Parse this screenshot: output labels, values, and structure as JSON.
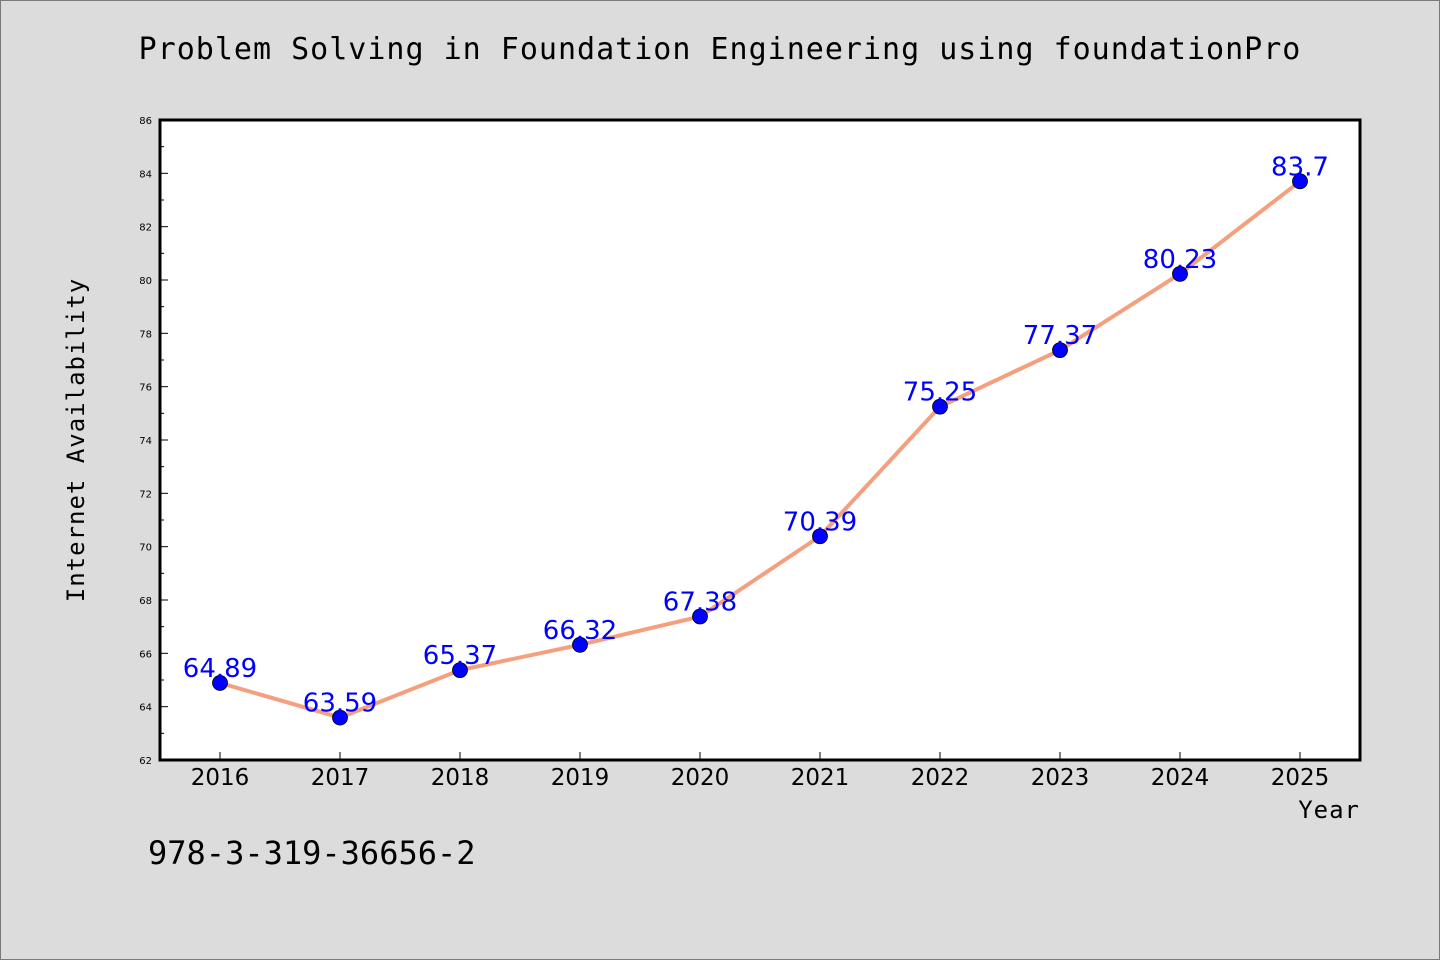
{
  "chart_data": {
    "type": "line",
    "title": "Problem Solving in Foundation Engineering using foundationPro",
    "xlabel": "Year",
    "ylabel": "Internet Availability",
    "categories": [
      "2016",
      "2017",
      "2018",
      "2019",
      "2020",
      "2021",
      "2022",
      "2023",
      "2024",
      "2025"
    ],
    "series": [
      {
        "values": [
          64.89,
          63.59,
          65.37,
          66.32,
          67.38,
          70.39,
          75.25,
          77.37,
          80.23,
          83.7
        ],
        "labels": [
          "64.89",
          "63.59",
          "65.37",
          "66.32",
          "67.38",
          "70.39",
          "75.25",
          "77.37",
          "80.23",
          "83.7"
        ],
        "line_color": "#f4a07e",
        "marker_color": "#0000ff"
      }
    ],
    "ylim": [
      62,
      86
    ],
    "yticks": [
      "62",
      "64",
      "66",
      "68",
      "70",
      "72",
      "74",
      "76",
      "78",
      "80",
      "82",
      "84",
      "86"
    ],
    "grid": false,
    "legend": "none"
  },
  "footer": {
    "isbn": "978-3-319-36656-2"
  }
}
